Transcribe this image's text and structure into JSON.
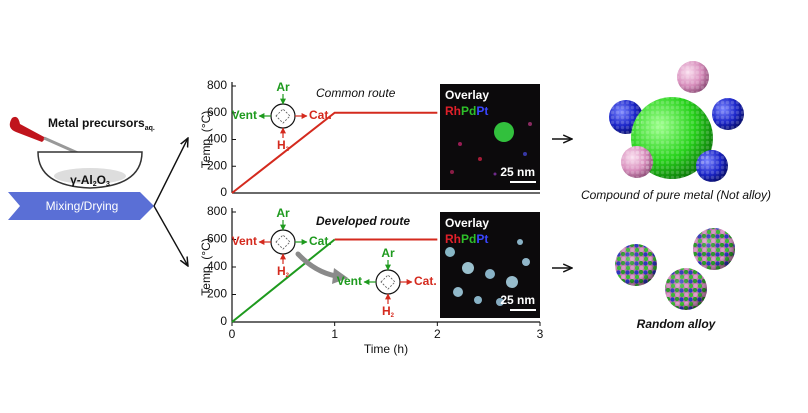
{
  "chart_data": [
    {
      "type": "line",
      "x": [
        0,
        1,
        2
      ],
      "values": [
        0,
        600,
        600
      ],
      "color": "#d42a1e",
      "xlim": [
        0,
        3
      ],
      "ylim": [
        0,
        800
      ],
      "yticks": [
        0,
        200,
        400,
        600,
        800
      ],
      "y_label": "Temp. (°C)",
      "annotation": "Common route"
    },
    {
      "type": "line",
      "x": [
        0,
        1,
        2
      ],
      "series": [
        {
          "color": "#1e9a1e",
          "values": [
            0,
            600,
            null
          ]
        },
        {
          "color": "#d42a1e",
          "values": [
            null,
            600,
            600
          ]
        }
      ],
      "xlim": [
        0,
        3
      ],
      "xticks": [
        0,
        1,
        2,
        3
      ],
      "ylim": [
        0,
        800
      ],
      "yticks": [
        0,
        200,
        400,
        600,
        800
      ],
      "x_label": "Time (h)",
      "y_label": "Temp. (°C)",
      "annotation": "Developed route"
    }
  ],
  "valves": [
    {
      "top": "Ar",
      "left": "Vent",
      "right": "Cat.",
      "bottom": "H",
      "bottom_sub": "2"
    },
    {
      "top": "Ar",
      "left": "Vent",
      "right": "Cat.",
      "bottom": "H",
      "bottom_sub": "2"
    },
    {
      "top": "Ar",
      "left": "Vent",
      "right": "Cat.",
      "bottom": "H",
      "bottom_sub": "2"
    }
  ],
  "micrographs": [
    {
      "title": "Overlay",
      "elements": [
        "Rh",
        "Pd",
        "Pt"
      ],
      "scale": "25 nm"
    },
    {
      "title": "Overlay",
      "elements": [
        "Rh",
        "Pd",
        "Pt"
      ],
      "scale": "25 nm"
    }
  ],
  "preparation": {
    "precursor": "Metal precursors",
    "precursor_sub": "aq.",
    "support": "γ-Al",
    "support_sub1": "2",
    "support_mid": "O",
    "support_sub2": "3",
    "step": "Mixing/Drying"
  },
  "results": [
    {
      "label": "Compound of pure metal (Not alloy)"
    },
    {
      "label": "Random alloy"
    }
  ]
}
